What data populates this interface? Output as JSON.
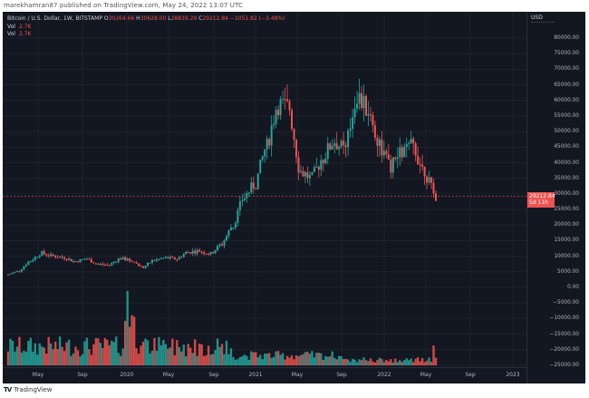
{
  "header": {
    "published": "marekhamran87 published on TradingView.com, May 24, 2022 13:07 UTC"
  },
  "legend": {
    "symbol": "Bitcoin / U.S. Dollar, 1W, BITSTAMP",
    "o_label": "O",
    "o": "30264.66",
    "h_label": "H",
    "h": "30628.00",
    "l_label": "L",
    "l": "28839.29",
    "c_label": "C",
    "c": "29212.84",
    "change": "−1051.82 (−3.48%)",
    "vol1_label": "Vol",
    "vol1": "2.7K",
    "vol2_label": "Vol",
    "vol2": "2.7K"
  },
  "price_axis": {
    "currency": "USD",
    "ticks": [
      "80000.00",
      "75000.00",
      "70000.00",
      "65000.00",
      "60000.00",
      "55000.00",
      "50000.00",
      "45000.00",
      "40000.00",
      "35000.00",
      "30000.00",
      "25000.00",
      "20000.00",
      "15000.00",
      "10000.00",
      "5000.00",
      "0.00",
      "−5000.00",
      "−10000.00",
      "−15000.00",
      "−20000.00",
      "−25000.00"
    ],
    "last_price": "29212.84",
    "countdown": "5d 11h"
  },
  "time_axis": {
    "ticks": [
      "May",
      "Sep",
      "2020",
      "May",
      "Sep",
      "2021",
      "May",
      "Sep",
      "2022",
      "May",
      "Sep",
      "2023"
    ]
  },
  "footer": {
    "brand": "TradingView",
    "logo": "TV"
  },
  "colors": {
    "up": "#26a69a",
    "down": "#ef5350",
    "background": "#131722",
    "grid": "#1e222d",
    "last_price_line": "#ef5350"
  },
  "chart_data": {
    "type": "candlestick",
    "title": "Bitcoin / U.S. Dollar, 1W, BITSTAMP",
    "ylabel": "USD",
    "ylim": [
      -25000,
      82000
    ],
    "x_range": [
      "2019-03",
      "2023-02"
    ],
    "last_close": 29212.84,
    "monthly_approx_closes": [
      {
        "month": "2019-03",
        "close": 4100
      },
      {
        "month": "2019-04",
        "close": 5300
      },
      {
        "month": "2019-05",
        "close": 8500
      },
      {
        "month": "2019-06",
        "close": 11000
      },
      {
        "month": "2019-07",
        "close": 10100
      },
      {
        "month": "2019-08",
        "close": 9600
      },
      {
        "month": "2019-09",
        "close": 8300
      },
      {
        "month": "2019-10",
        "close": 9200
      },
      {
        "month": "2019-11",
        "close": 7500
      },
      {
        "month": "2019-12",
        "close": 7200
      },
      {
        "month": "2020-01",
        "close": 9300
      },
      {
        "month": "2020-02",
        "close": 8600
      },
      {
        "month": "2020-03",
        "close": 6400
      },
      {
        "month": "2020-04",
        "close": 8700
      },
      {
        "month": "2020-05",
        "close": 9500
      },
      {
        "month": "2020-06",
        "close": 9100
      },
      {
        "month": "2020-07",
        "close": 11300
      },
      {
        "month": "2020-08",
        "close": 11700
      },
      {
        "month": "2020-09",
        "close": 10800
      },
      {
        "month": "2020-10",
        "close": 13800
      },
      {
        "month": "2020-11",
        "close": 19700
      },
      {
        "month": "2020-12",
        "close": 29000
      },
      {
        "month": "2021-01",
        "close": 33100
      },
      {
        "month": "2021-02",
        "close": 45200
      },
      {
        "month": "2021-03",
        "close": 58800
      },
      {
        "month": "2021-04",
        "close": 57700
      },
      {
        "month": "2021-05",
        "close": 37300
      },
      {
        "month": "2021-06",
        "close": 35000
      },
      {
        "month": "2021-07",
        "close": 41500
      },
      {
        "month": "2021-08",
        "close": 47100
      },
      {
        "month": "2021-09",
        "close": 43800
      },
      {
        "month": "2021-10",
        "close": 61300
      },
      {
        "month": "2021-11",
        "close": 57000
      },
      {
        "month": "2021-12",
        "close": 46200
      },
      {
        "month": "2022-01",
        "close": 38500
      },
      {
        "month": "2022-02",
        "close": 43200
      },
      {
        "month": "2022-03",
        "close": 45500
      },
      {
        "month": "2022-04",
        "close": 37700
      },
      {
        "month": "2022-05",
        "close": 29212.84
      }
    ],
    "all_time_high_approx": 69000,
    "covid_low_approx": 3850,
    "volume_series": "weekly volume, green=up week red=down week, spikes at Mar 2020 and May 2022"
  }
}
